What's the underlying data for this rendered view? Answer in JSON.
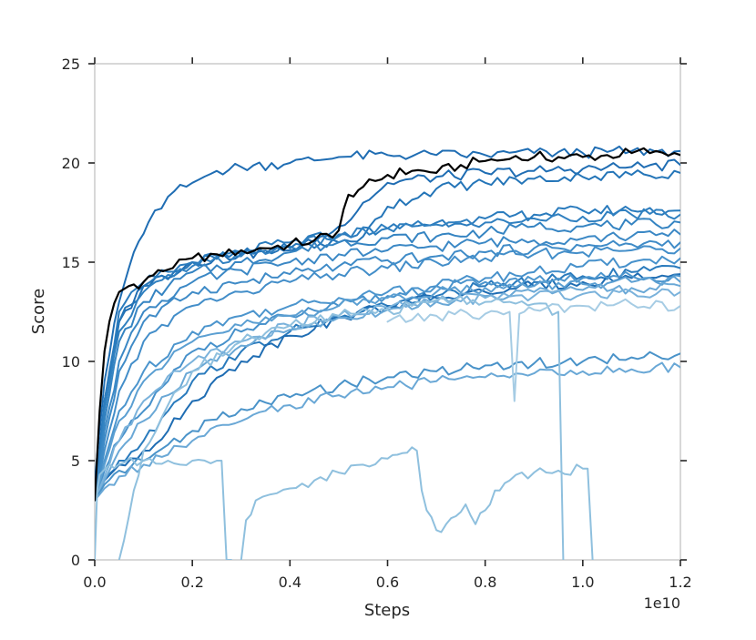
{
  "chart_data": {
    "type": "line",
    "title": "",
    "xlabel": "Steps",
    "ylabel": "Score",
    "x_offset_label": "1e10",
    "xlim": [
      0,
      1.2
    ],
    "ylim": [
      0,
      25
    ],
    "xticks": [
      0.0,
      0.2,
      0.4,
      0.6,
      0.8,
      1.0,
      1.2
    ],
    "xtick_labels": [
      "0.0",
      "0.2",
      "0.4",
      "0.6",
      "0.8",
      "1.0",
      "1.2"
    ],
    "yticks": [
      0,
      5,
      10,
      15,
      20,
      25
    ],
    "ytick_labels": [
      "0",
      "5",
      "10",
      "15",
      "20",
      "25"
    ],
    "grid": false,
    "legend": "none",
    "colors": {
      "dark_blue": "#1f6db3",
      "mid_blue": "#4a93c9",
      "light_blue": "#8fc0de",
      "highlight": "#000000",
      "spine": "#bfbfbf"
    },
    "series": [
      {
        "color": "#000000",
        "highlight": true,
        "x": [
          0,
          0.01,
          0.02,
          0.03,
          0.05,
          0.07,
          0.1,
          0.13,
          0.16,
          0.2,
          0.25,
          0.3,
          0.35,
          0.4,
          0.45,
          0.5,
          0.52,
          0.55,
          0.6,
          0.65,
          0.7,
          0.75,
          0.8,
          0.85,
          0.9,
          0.95,
          1.0,
          1.05,
          1.1,
          1.15,
          1.2
        ],
        "y": [
          3.0,
          7.5,
          10.5,
          12.0,
          13.5,
          13.8,
          14.0,
          14.6,
          14.7,
          15.2,
          15.4,
          15.6,
          15.7,
          15.9,
          16.1,
          16.6,
          18.4,
          18.8,
          19.4,
          19.6,
          19.5,
          19.9,
          20.1,
          20.2,
          20.3,
          20.3,
          20.3,
          20.4,
          20.5,
          20.6,
          20.4
        ]
      },
      {
        "color": "#1f6db3",
        "x": [
          0,
          0.02,
          0.05,
          0.08,
          0.11,
          0.15,
          0.2,
          0.25,
          0.3,
          0.4,
          0.5,
          0.6,
          0.7,
          0.8,
          0.9,
          1.0,
          1.1,
          1.2
        ],
        "y": [
          4.0,
          9.0,
          13.0,
          15.5,
          17.0,
          18.3,
          19.0,
          19.6,
          19.8,
          20.0,
          20.3,
          20.4,
          20.4,
          20.4,
          20.5,
          20.5,
          20.6,
          20.6
        ]
      },
      {
        "color": "#1f6db3",
        "x": [
          0,
          0.02,
          0.05,
          0.1,
          0.2,
          0.3,
          0.4,
          0.45,
          0.5,
          0.55,
          0.6,
          0.7,
          0.8,
          0.9,
          1.0,
          1.1,
          1.2
        ],
        "y": [
          3.0,
          8.0,
          12.0,
          13.8,
          15.0,
          15.4,
          15.6,
          16.0,
          16.8,
          18.0,
          19.0,
          19.3,
          19.5,
          19.6,
          19.7,
          19.8,
          19.9
        ]
      },
      {
        "color": "#2475b8",
        "x": [
          0,
          0.02,
          0.05,
          0.1,
          0.2,
          0.3,
          0.4,
          0.5,
          0.55,
          0.6,
          0.7,
          0.8,
          0.9,
          1.0,
          1.1,
          1.2
        ],
        "y": [
          3.0,
          8.0,
          12.0,
          13.8,
          15.0,
          15.4,
          15.7,
          16.0,
          16.3,
          17.8,
          18.7,
          19.0,
          19.2,
          19.3,
          19.4,
          19.5
        ]
      },
      {
        "color": "#2a7bbd",
        "x": [
          0,
          0.02,
          0.05,
          0.1,
          0.2,
          0.3,
          0.4,
          0.5,
          0.6,
          0.7,
          0.8,
          0.9,
          1.0,
          1.1,
          1.2
        ],
        "y": [
          3.0,
          8.0,
          12.5,
          14.0,
          15.0,
          15.5,
          16.0,
          16.4,
          16.7,
          17.0,
          17.2,
          17.4,
          17.6,
          17.6,
          17.6
        ]
      },
      {
        "color": "#3080c0",
        "x": [
          0,
          0.02,
          0.05,
          0.1,
          0.2,
          0.3,
          0.4,
          0.5,
          0.6,
          0.7,
          0.8,
          0.9,
          1.0,
          1.1,
          1.2
        ],
        "y": [
          3.0,
          7.5,
          11.5,
          13.5,
          14.8,
          15.3,
          15.8,
          16.3,
          16.7,
          16.9,
          17.0,
          17.2,
          17.3,
          17.4,
          17.4
        ]
      },
      {
        "color": "#3584c2",
        "x": [
          0,
          0.02,
          0.05,
          0.1,
          0.2,
          0.3,
          0.4,
          0.5,
          0.6,
          0.7,
          0.8,
          0.9,
          1.0,
          1.1,
          1.2
        ],
        "y": [
          3.0,
          7.0,
          11.0,
          13.0,
          14.5,
          15.0,
          15.5,
          16.0,
          16.2,
          16.3,
          16.5,
          16.8,
          16.8,
          16.9,
          17.0
        ]
      },
      {
        "color": "#3b88c5",
        "x": [
          0,
          0.02,
          0.05,
          0.1,
          0.2,
          0.3,
          0.4,
          0.5,
          0.6,
          0.7,
          0.8,
          0.9,
          1.0,
          1.1,
          1.2
        ],
        "y": [
          3.0,
          6.5,
          10.0,
          12.5,
          14.0,
          14.6,
          15.0,
          15.4,
          15.6,
          15.8,
          16.0,
          16.1,
          16.2,
          16.3,
          16.4
        ]
      },
      {
        "color": "#3f8bc7",
        "x": [
          0,
          0.02,
          0.05,
          0.1,
          0.2,
          0.3,
          0.4,
          0.5,
          0.6,
          0.7,
          0.8,
          0.9,
          1.0,
          1.1,
          1.2
        ],
        "y": [
          3.0,
          6.0,
          9.5,
          12.0,
          13.5,
          14.0,
          14.4,
          14.8,
          15.1,
          15.3,
          15.5,
          15.7,
          15.8,
          15.9,
          16.0
        ]
      },
      {
        "color": "#438ec9",
        "x": [
          0,
          0.02,
          0.05,
          0.1,
          0.2,
          0.3,
          0.4,
          0.5,
          0.6,
          0.7,
          0.8,
          0.9,
          1.0,
          1.1,
          1.2
        ],
        "y": [
          3.0,
          5.5,
          8.5,
          11.0,
          12.8,
          13.5,
          14.0,
          14.4,
          14.7,
          15.0,
          15.2,
          15.4,
          15.5,
          15.6,
          15.7
        ]
      },
      {
        "color": "#4791cb",
        "x": [
          0,
          0.02,
          0.05,
          0.1,
          0.15,
          0.2,
          0.3,
          0.4,
          0.5,
          0.6,
          0.7,
          0.8,
          0.9,
          1.0,
          1.1,
          1.2
        ],
        "y": [
          3.0,
          4.5,
          6.0,
          7.5,
          9.0,
          10.5,
          11.5,
          12.3,
          12.8,
          13.3,
          13.8,
          14.2,
          14.5,
          14.8,
          15.0,
          15.2
        ]
      },
      {
        "color": "#2a7bbd",
        "x": [
          0,
          0.02,
          0.05,
          0.1,
          0.15,
          0.2,
          0.3,
          0.4,
          0.5,
          0.6,
          0.7,
          0.8,
          0.9,
          1.0,
          1.1,
          1.2
        ],
        "y": [
          3.0,
          4.0,
          5.0,
          6.0,
          7.5,
          9.0,
          10.5,
          11.5,
          12.2,
          12.8,
          13.3,
          13.8,
          14.0,
          14.3,
          14.5,
          14.7
        ]
      },
      {
        "color": "#1f6db3",
        "x": [
          0,
          0.02,
          0.05,
          0.1,
          0.15,
          0.2,
          0.3,
          0.4,
          0.5,
          0.6,
          0.7,
          0.8,
          0.9,
          1.0,
          1.1,
          1.2
        ],
        "y": [
          3.0,
          4.0,
          4.8,
          5.5,
          6.5,
          8.0,
          10.0,
          11.3,
          12.2,
          12.8,
          13.2,
          13.5,
          13.8,
          14.0,
          14.2,
          14.4
        ]
      },
      {
        "color": "#4c95cd",
        "x": [
          0,
          0.02,
          0.05,
          0.1,
          0.2,
          0.3,
          0.4,
          0.5,
          0.6,
          0.7,
          0.8,
          0.9,
          1.0,
          1.1,
          1.2
        ],
        "y": [
          3.0,
          5.0,
          7.5,
          9.5,
          11.5,
          12.3,
          12.8,
          13.2,
          13.5,
          13.8,
          14.0,
          14.1,
          14.2,
          14.3,
          14.3
        ]
      },
      {
        "color": "#5b9fd2",
        "x": [
          0,
          0.02,
          0.05,
          0.1,
          0.2,
          0.3,
          0.4,
          0.5,
          0.6,
          0.7,
          0.8,
          0.9,
          1.0,
          1.1,
          1.2
        ],
        "y": [
          3.0,
          4.8,
          7.0,
          9.0,
          11.0,
          11.8,
          12.3,
          12.8,
          13.2,
          13.5,
          13.7,
          13.8,
          13.9,
          14.0,
          14.0
        ]
      },
      {
        "color": "#6aa8d6",
        "x": [
          0,
          0.02,
          0.05,
          0.1,
          0.15,
          0.2,
          0.3,
          0.4,
          0.5,
          0.6,
          0.7,
          0.8,
          0.9,
          1.0,
          1.1,
          1.2
        ],
        "y": [
          3.0,
          4.0,
          5.5,
          7.0,
          8.3,
          9.5,
          10.8,
          11.6,
          12.2,
          12.6,
          13.0,
          13.3,
          13.5,
          13.6,
          13.7,
          13.8
        ]
      },
      {
        "color": "#7ab2db",
        "x": [
          0,
          0.02,
          0.05,
          0.1,
          0.2,
          0.3,
          0.4,
          0.5,
          0.6,
          0.7,
          0.8,
          0.9,
          1.0,
          1.1,
          1.2
        ],
        "y": [
          3.0,
          4.2,
          6.0,
          8.0,
          10.0,
          11.0,
          11.8,
          12.3,
          12.7,
          13.0,
          13.2,
          13.3,
          13.4,
          13.5,
          13.5
        ]
      },
      {
        "color": "#4a93c9",
        "x": [
          0,
          0.02,
          0.05,
          0.1,
          0.15,
          0.2,
          0.3,
          0.4,
          0.5,
          0.6,
          0.7,
          0.8,
          0.9,
          1.0,
          1.1,
          1.2
        ],
        "y": [
          3.0,
          3.8,
          4.5,
          5.0,
          5.8,
          6.5,
          7.6,
          8.2,
          8.8,
          9.2,
          9.5,
          9.8,
          9.9,
          10.0,
          10.2,
          10.4
        ]
      },
      {
        "color": "#6aa8d6",
        "x": [
          0,
          0.02,
          0.05,
          0.1,
          0.15,
          0.2,
          0.3,
          0.4,
          0.5,
          0.6,
          0.7,
          0.8,
          0.9,
          1.0,
          1.1,
          1.2
        ],
        "y": [
          3.0,
          3.6,
          4.2,
          4.8,
          5.3,
          6.0,
          7.0,
          7.8,
          8.3,
          8.7,
          9.0,
          9.2,
          9.4,
          9.5,
          9.6,
          9.7
        ]
      },
      {
        "color": "#8fc0de",
        "x": [
          0,
          0.005,
          0.01,
          0.03,
          0.06,
          0.1,
          0.15,
          0.2,
          0.25,
          0.26,
          0.27,
          0.28
        ],
        "y": [
          0.0,
          3.5,
          4.3,
          4.8,
          4.9,
          5.0,
          5.0,
          5.0,
          5.0,
          5.0,
          0.0,
          0.0
        ]
      },
      {
        "color": "#8fc0de",
        "x": [
          0.3,
          0.31,
          0.33,
          0.36,
          0.4,
          0.45,
          0.5,
          0.55,
          0.6,
          0.62,
          0.64,
          0.66,
          0.67,
          0.68,
          0.7,
          0.72,
          0.74,
          0.76,
          0.78,
          0.8,
          0.82,
          0.85,
          0.9,
          0.95,
          1.0,
          1.01,
          1.02
        ],
        "y": [
          0.0,
          2.0,
          3.0,
          3.3,
          3.6,
          4.0,
          4.4,
          4.8,
          5.1,
          5.3,
          5.4,
          5.5,
          3.5,
          2.5,
          1.5,
          1.8,
          2.2,
          2.8,
          1.8,
          2.5,
          3.5,
          4.0,
          4.4,
          4.5,
          4.6,
          4.6,
          0.0
        ]
      },
      {
        "color": "#8fc0de",
        "x": [
          0.05,
          0.06,
          0.08,
          0.1,
          0.15,
          0.2,
          0.3,
          0.4,
          0.5,
          0.6,
          0.65,
          0.66,
          0.67,
          0.7,
          0.8,
          0.85,
          0.9,
          0.95,
          0.96
        ],
        "y": [
          0.0,
          1.0,
          3.5,
          5.5,
          7.8,
          9.5,
          11.0,
          11.8,
          12.3,
          12.6,
          12.8,
          13.0,
          13.0,
          13.1,
          13.0,
          13.0,
          12.9,
          12.5,
          0.0
        ]
      },
      {
        "color": "#a6cce4",
        "x": [
          0.6,
          0.7,
          0.8,
          0.85,
          0.86,
          0.87,
          0.88,
          0.9,
          1.0,
          1.1,
          1.2
        ],
        "y": [
          12.0,
          12.3,
          12.4,
          12.5,
          8.0,
          12.4,
          12.5,
          12.6,
          12.8,
          12.9,
          12.8
        ]
      }
    ]
  }
}
